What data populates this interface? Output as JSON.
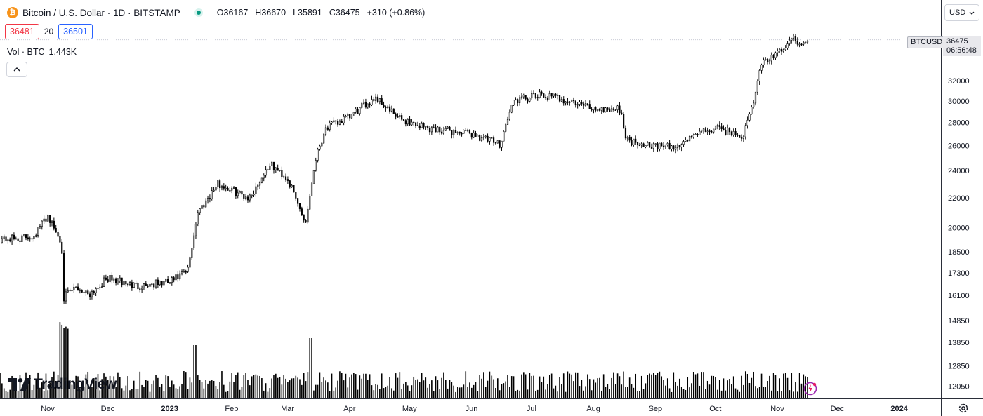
{
  "header": {
    "coin_icon_glyph": "₿",
    "symbol_title": "Bitcoin / U.S. Dollar · 1D · BITSTAMP",
    "open_label": "O",
    "open_value": "36167",
    "high_label": "H",
    "high_value": "36670",
    "low_label": "L",
    "low_value": "35891",
    "close_label": "C",
    "close_value": "36475",
    "change": "+310 (+0.86%)"
  },
  "quote": {
    "sell": "36481",
    "spread": "20",
    "buy": "36501"
  },
  "volume_legend": {
    "label": "Vol · BTC",
    "value": "1.443K"
  },
  "currency_select": {
    "value": "USD"
  },
  "price_scale": {
    "ticks": [
      "32000",
      "30000",
      "28000",
      "26000",
      "24000",
      "22000",
      "20000",
      "18500",
      "17300",
      "16100",
      "14850",
      "13850",
      "12850",
      "12050"
    ],
    "symbol_tag": "BTCUSD",
    "last_price": "36475",
    "countdown": "06:56:48"
  },
  "time_axis": {
    "ticks": [
      "Nov",
      "Dec",
      "2023",
      "Feb",
      "Mar",
      "Apr",
      "May",
      "Jun",
      "Jul",
      "Aug",
      "Sep",
      "Oct",
      "Nov",
      "Dec",
      "2024"
    ]
  },
  "logo": {
    "text": "TradingView"
  },
  "colors": {
    "sell": "#f23645",
    "buy": "#2962ff",
    "live_dot": "#089981",
    "candles": "#000000",
    "bitcoin_orange": "#f7931a"
  },
  "chart_data": {
    "type": "candlestick",
    "interval": "1D",
    "scale": "log",
    "x": [
      "2022-10-18",
      "2022-10-25",
      "2022-11-01",
      "2022-11-08",
      "2022-11-09",
      "2022-11-15",
      "2022-11-22",
      "2022-12-01",
      "2022-12-15",
      "2023-01-01",
      "2023-01-10",
      "2023-01-15",
      "2023-01-25",
      "2023-02-10",
      "2023-02-20",
      "2023-03-01",
      "2023-03-10",
      "2023-03-15",
      "2023-03-20",
      "2023-04-01",
      "2023-04-14",
      "2023-04-25",
      "2023-05-10",
      "2023-06-01",
      "2023-06-15",
      "2023-06-22",
      "2023-07-05",
      "2023-07-14",
      "2023-08-01",
      "2023-08-15",
      "2023-08-17",
      "2023-09-01",
      "2023-09-11",
      "2023-09-20",
      "2023-10-01",
      "2023-10-15",
      "2023-10-20",
      "2023-10-24",
      "2023-11-01",
      "2023-11-09",
      "2023-11-15",
      "2023-11-17"
    ],
    "close": [
      19300,
      19500,
      20800,
      19000,
      16000,
      16500,
      16200,
      17000,
      16600,
      16800,
      17400,
      21000,
      23000,
      22000,
      24500,
      23400,
      20300,
      25000,
      27500,
      28500,
      30400,
      28400,
      27500,
      27000,
      26100,
      30000,
      30500,
      30300,
      29300,
      29200,
      26500,
      26000,
      25800,
      26900,
      27500,
      26800,
      29800,
      33900,
      34800,
      36600,
      35900,
      36475
    ]
  },
  "volume_data": {
    "unit": "BTC",
    "last": 1443
  }
}
